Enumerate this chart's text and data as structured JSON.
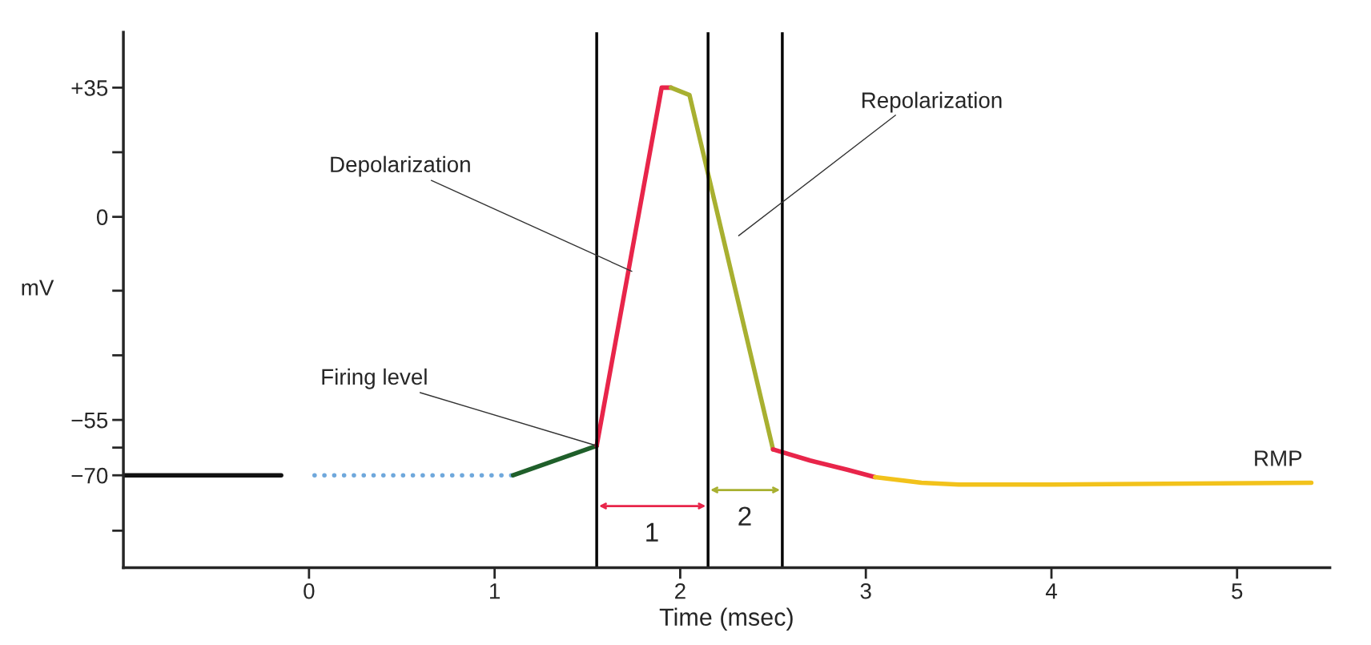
{
  "chart_data": {
    "type": "line",
    "xlabel": "Time (msec)",
    "ylabel": "mV",
    "xlim": [
      -1.0,
      5.5
    ],
    "ylim": [
      -95,
      50
    ],
    "xticks": [
      0,
      1,
      2,
      3,
      4,
      5
    ],
    "yticks": [
      {
        "value": 35,
        "label": "+35"
      },
      {
        "value": 17.5,
        "label": null
      },
      {
        "value": 0,
        "label": "0"
      },
      {
        "value": -20,
        "label": null
      },
      {
        "value": -37.5,
        "label": null
      },
      {
        "value": -55,
        "label": "−55"
      },
      {
        "value": -62.5,
        "label": null
      },
      {
        "value": -70,
        "label": "−70"
      },
      {
        "value": -85,
        "label": null
      }
    ],
    "grid": false,
    "series": [
      {
        "color": "#111111",
        "line_style": "solid",
        "x": [
          -1.0,
          -0.15
        ],
        "values": [
          -70,
          -70
        ]
      },
      {
        "color": "#6fa8dc",
        "line_style": "dotted",
        "x": [
          0.03,
          1.1
        ],
        "values": [
          -70,
          -70
        ]
      },
      {
        "color": "#1f5f2a",
        "line_style": "solid",
        "x": [
          1.1,
          1.55
        ],
        "values": [
          -70,
          -62
        ]
      },
      {
        "color": "#e8254a",
        "line_style": "solid",
        "x": [
          1.55,
          1.9,
          1.95
        ],
        "values": [
          -62,
          35,
          35
        ]
      },
      {
        "color": "#a8b030",
        "line_style": "solid",
        "x": [
          1.95,
          2.05,
          2.5
        ],
        "values": [
          35,
          33,
          -63
        ]
      },
      {
        "color": "#e8254a",
        "line_style": "solid",
        "x": [
          2.5,
          2.7,
          2.9,
          3.05
        ],
        "values": [
          -63,
          -66,
          -68.5,
          -70.5
        ]
      },
      {
        "color": "#f2c21b",
        "line_style": "solid",
        "x": [
          3.05,
          3.3,
          3.5,
          4.0,
          5.4
        ],
        "values": [
          -70.5,
          -72,
          -72.5,
          -72.5,
          -72
        ]
      }
    ],
    "ref_lines": [
      {
        "axis": "x",
        "value": 1.55,
        "color": "#000000"
      },
      {
        "axis": "x",
        "value": 2.15,
        "color": "#000000"
      },
      {
        "axis": "x",
        "value": 2.55,
        "color": "#000000"
      }
    ],
    "annotations": [
      {
        "text": "Depolarization",
        "x": 1.75,
        "y": -15
      },
      "Repolarization",
      {
        "text": "Firing level",
        "x": 1.55,
        "y": -62
      },
      {
        "text": "RMP",
        "x": 5.4,
        "y": -72
      },
      "1",
      "2"
    ]
  }
}
